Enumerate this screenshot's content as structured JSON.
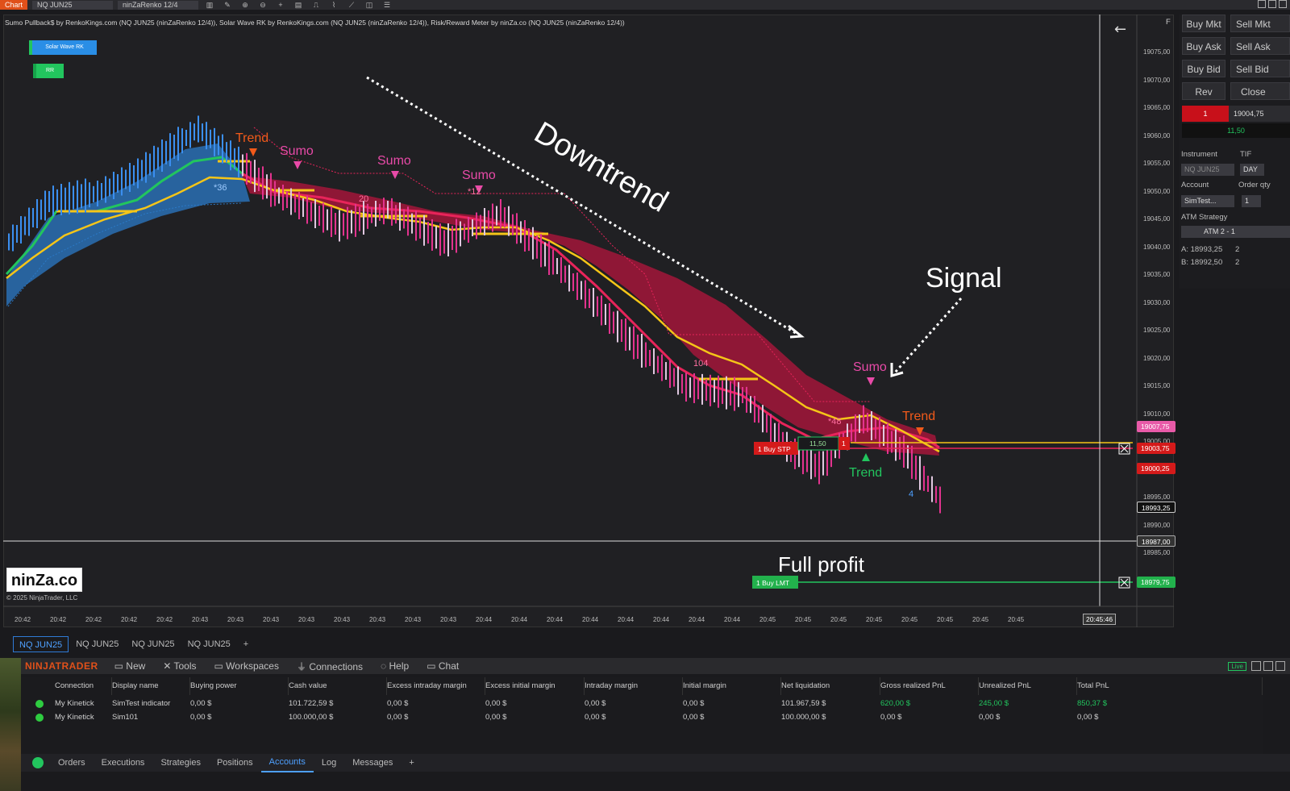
{
  "topbar": {
    "tab": "Chart",
    "instrument": "NQ JUN25",
    "bartype": "ninZaRenko 12/4"
  },
  "chart": {
    "indicator_title": "Sumo Pullback$ by RenkoKings.com (NQ JUN25 (ninZaRenko 12/4)), Solar Wave RK by RenkoKings.com (NQ JUN25 (ninZaRenko 12/4)), Risk/Reward Meter by ninZa.co (NQ JUN25 (ninZaRenko 12/4))",
    "legend_solar": "Solar Wave RK",
    "legend_rr": "RR",
    "annotations": {
      "downtrend": "Downtrend",
      "signal": "Signal",
      "full_profit": "Full profit"
    },
    "markers": {
      "trend1": "Trend",
      "sumo1": "Sumo",
      "sumo2": "Sumo",
      "sumo3": "Sumo",
      "sumo4": "Sumo",
      "trend2": "Trend",
      "trend_green": "Trend",
      "num36": "*36",
      "num20": "20",
      "num12": "*12",
      "num104": "104",
      "num48": "*48",
      "num4": "4"
    },
    "orders": {
      "buy_stp": "1  Buy STP",
      "pnl": "11,50",
      "qty": "1",
      "buy_lmt": "1  Buy LMT"
    },
    "price_axis": [
      "19075,00",
      "19070,00",
      "19065,00",
      "19060,00",
      "19055,00",
      "19050,00",
      "19045,00",
      "19040,00",
      "19035,00",
      "19030,00",
      "19025,00",
      "19020,00",
      "19015,00",
      "19010,00",
      "19005,00",
      "19000,00",
      "18995,00",
      "18990,00",
      "18985,00"
    ],
    "price_tags": {
      "p1": "19007,75",
      "p2": "19003,75",
      "p3": "19000,25",
      "p4": "18993,25",
      "p5": "18987,00",
      "p6": "18979,75"
    },
    "time_axis": [
      "20:42",
      "20:42",
      "20:42",
      "20:42",
      "20:42",
      "20:43",
      "20:43",
      "20:43",
      "20:43",
      "20:43",
      "20:43",
      "20:43",
      "20:43",
      "20:44",
      "20:44",
      "20:44",
      "20:44",
      "20:44",
      "20:44",
      "20:44",
      "20:44",
      "20:45",
      "20:45",
      "20:45",
      "20:45",
      "20:45",
      "20:45",
      "20:45",
      "20:45"
    ],
    "time_cursor": "20:45:46",
    "logo": "ninZa.co",
    "copyright": "© 2025 NinjaTrader, LLC"
  },
  "right_panel": {
    "buy_mkt": "Buy Mkt",
    "sell_mkt": "Sell Mkt",
    "buy_ask": "Buy Ask",
    "sell_ask": "Sell Ask",
    "buy_bid": "Buy Bid",
    "sell_bid": "Sell Bid",
    "rev": "Rev",
    "close": "Close",
    "position_qty": "1",
    "position_price": "19004,75",
    "position_pnl": "11,50",
    "instrument_label": "Instrument",
    "tif_label": "TIF",
    "instrument_value": "NQ JUN25",
    "tif_value": "DAY",
    "account_label": "Account",
    "order_label": "Order qty",
    "account_value": "SimTest...",
    "order_value": "1",
    "atm_label": "ATM Strategy",
    "atm_value": "ATM 2 - 1",
    "ask": "A:  18993,25",
    "ask_qty": "2",
    "bid": "B:  18992,50",
    "bid_qty": "2",
    "f": "F"
  },
  "chart_tabs": [
    "NQ JUN25",
    "NQ JUN25",
    "NQ JUN25",
    "NQ JUN25"
  ],
  "control_center": {
    "brand": "NINJATRADER",
    "menu": [
      "New",
      "Tools",
      "Workspaces",
      "Connections",
      "Help",
      "Chat"
    ],
    "columns": [
      "Connection",
      "Display name",
      "Buying power",
      "Cash value",
      "Excess intraday margin",
      "Excess initial margin",
      "Intraday margin",
      "Initial margin",
      "Net liquidation",
      "Gross realized PnL",
      "Unrealized PnL",
      "Total PnL"
    ],
    "rows": [
      [
        "My Kinetick",
        "SimTest indicator",
        "0,00 $",
        "101.722,59 $",
        "0,00 $",
        "0,00 $",
        "0,00 $",
        "0,00 $",
        "101.967,59 $",
        "620,00 $",
        "245,00 $",
        "850,37 $"
      ],
      [
        "My Kinetick",
        "Sim101",
        "0,00 $",
        "100.000,00 $",
        "0,00 $",
        "0,00 $",
        "0,00 $",
        "0,00 $",
        "100.000,00 $",
        "0,00 $",
        "0,00 $",
        "0,00 $"
      ]
    ],
    "tabs": [
      "Orders",
      "Executions",
      "Strategies",
      "Positions",
      "Accounts",
      "Log",
      "Messages"
    ],
    "live": "Live"
  }
}
